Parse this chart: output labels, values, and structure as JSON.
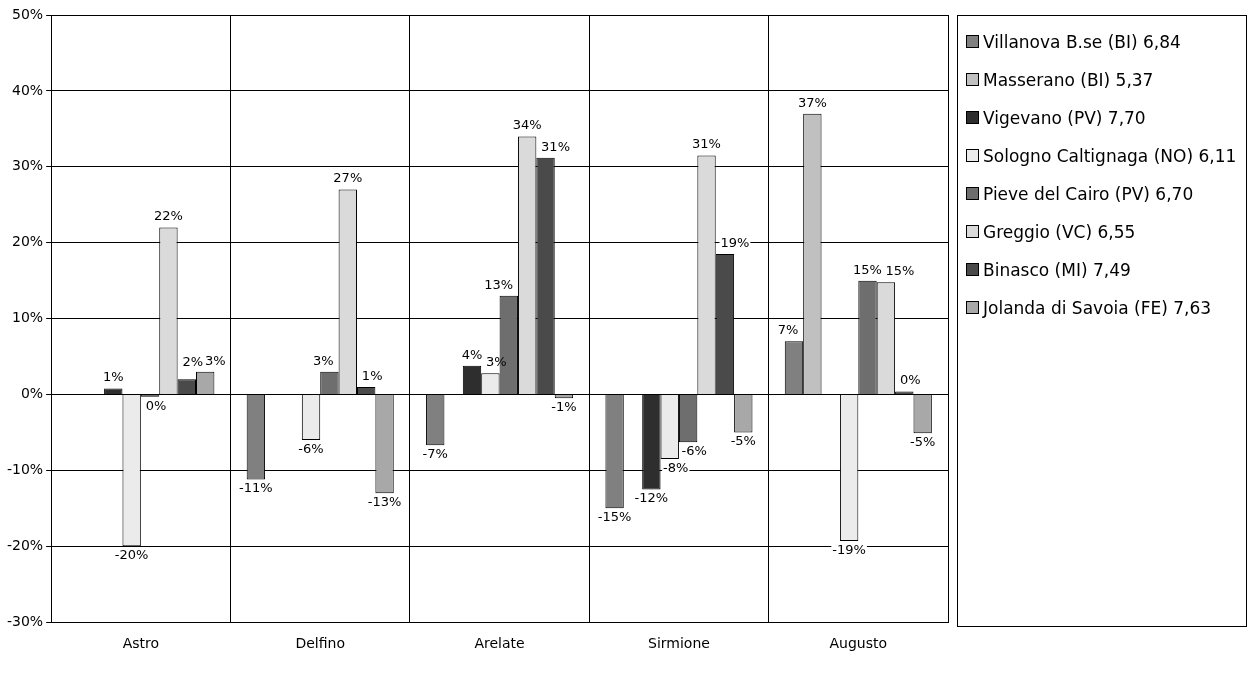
{
  "chart_data": {
    "type": "bar",
    "categories": [
      "Astro",
      "Delfino",
      "Arelate",
      "Sirmione",
      "Augusto"
    ],
    "series": [
      {
        "name": "Villanova B.se (BI) 6,84",
        "color": "#808080",
        "values": [
          null,
          -11.2,
          -6.7,
          -15,
          7
        ],
        "value_labels": [
          null,
          "-11%",
          "-7%",
          "-15%",
          "7%"
        ]
      },
      {
        "name": "Masserano (BI) 5,37",
        "color": "#c0c0c0",
        "values": [
          null,
          null,
          null,
          null,
          37
        ],
        "value_labels": [
          null,
          null,
          null,
          null,
          "37%"
        ]
      },
      {
        "name": "Vigevano (PV) 7,70",
        "color": "#2e2e2e",
        "values": [
          0.8,
          null,
          3.8,
          -12.5,
          null
        ],
        "value_labels": [
          "1%",
          null,
          "4%",
          "-12%",
          null
        ]
      },
      {
        "name": "Sologno Caltignaga (NO) 6,11",
        "color": "#ebebeb",
        "values": [
          -20,
          -6,
          2.8,
          -8.5,
          -19.3
        ],
        "value_labels": [
          "-20%",
          "-6%",
          "3%",
          "-8%",
          "-19%"
        ]
      },
      {
        "name": "Pieve del Cairo (PV) 6,70",
        "color": "#6e6e6e",
        "values": [
          -0.3,
          3,
          13,
          -6.3,
          15
        ],
        "value_labels": [
          "0%",
          "3%",
          "13%",
          "-6%",
          "15%"
        ]
      },
      {
        "name": "Greggio (VC) 6,55",
        "color": "#dadada",
        "values": [
          22,
          27,
          34,
          31.5,
          14.8
        ],
        "value_labels": [
          "22%",
          "27%",
          "34%",
          "31%",
          "15%"
        ]
      },
      {
        "name": "Binasco (MI) 7,49",
        "color": "#4a4a4a",
        "values": [
          2,
          1,
          31.2,
          18.5,
          0.4
        ],
        "value_labels": [
          "2%",
          "1%",
          "31%",
          "19%",
          "0%"
        ]
      },
      {
        "name": "Jolanda di Savoia (FE) 7,63",
        "color": "#a8a8a8",
        "values": [
          3,
          -13,
          -0.5,
          -5,
          -5.1
        ],
        "value_labels": [
          "3%",
          "-13%",
          "-1%",
          "-5%",
          "-5%"
        ]
      }
    ],
    "ylim": [
      -30,
      50
    ],
    "yticks": [
      {
        "value": -30,
        "label": "-30%"
      },
      {
        "value": -20,
        "label": "-20%"
      },
      {
        "value": -10,
        "label": "-10%"
      },
      {
        "value": 0,
        "label": "0%"
      },
      {
        "value": 10,
        "label": "10%"
      },
      {
        "value": 20,
        "label": "20%"
      },
      {
        "value": 30,
        "label": "30%"
      },
      {
        "value": 40,
        "label": "40%"
      },
      {
        "value": 50,
        "label": "50%"
      }
    ],
    "grid": true,
    "legend": "right"
  }
}
